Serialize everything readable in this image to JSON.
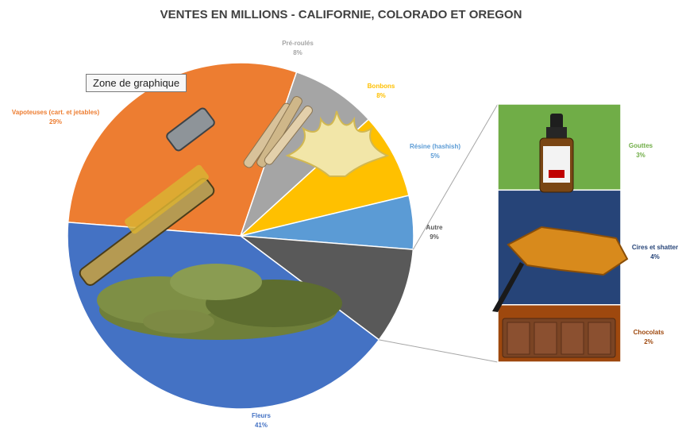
{
  "chart_data": {
    "type": "pie",
    "title": "VENTES EN MILLIONS - CALIFORNIE, COLORADO ET OREGON",
    "slices": [
      {
        "label": "Vapoteuses (cart. et jetables)",
        "value": 29,
        "display": "29%",
        "color": "#ed7d31"
      },
      {
        "label": "Pré-roulés",
        "value": 8,
        "display": "8%",
        "color": "#a5a5a5"
      },
      {
        "label": "Bonbons",
        "value": 8,
        "display": "8%",
        "color": "#ffc000"
      },
      {
        "label": "Résine (hashish)",
        "value": 5,
        "display": "5%",
        "color": "#5b9bd5"
      },
      {
        "label": "Autre",
        "value": 9,
        "display": "9%",
        "color": "#595959"
      },
      {
        "label": "Fleurs",
        "value": 41,
        "display": "41%",
        "color": "#4472c4"
      }
    ],
    "sub_bar": {
      "parent": "Autre",
      "segments": [
        {
          "label": "Gouttes",
          "value": 3,
          "display": "3%",
          "color": "#70ad47"
        },
        {
          "label": "Cires et shatter",
          "value": 4,
          "display": "4%",
          "color": "#264478"
        },
        {
          "label": "Chocolats",
          "value": 2,
          "display": "2%",
          "color": "#9e480e"
        }
      ]
    }
  },
  "tooltip": "Zone de graphique"
}
